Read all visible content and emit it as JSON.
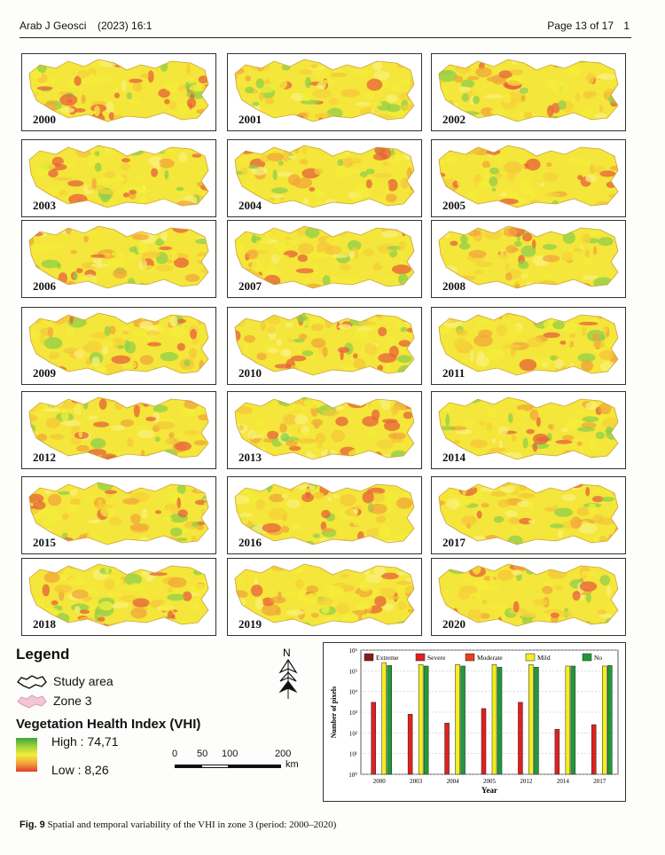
{
  "header": {
    "journal": "Arab J Geosci",
    "citation": "(2023) 16:1",
    "page_info": "Page 13 of 17",
    "page_number": "1"
  },
  "panels": [
    {
      "year": "2000"
    },
    {
      "year": "2001"
    },
    {
      "year": "2002"
    },
    {
      "year": "2003"
    },
    {
      "year": "2004"
    },
    {
      "year": "2005"
    },
    {
      "year": "2006"
    },
    {
      "year": "2007"
    },
    {
      "year": "2008"
    },
    {
      "year": "2009"
    },
    {
      "year": "2010"
    },
    {
      "year": "2011"
    },
    {
      "year": "2012"
    },
    {
      "year": "2013"
    },
    {
      "year": "2014"
    },
    {
      "year": "2015"
    },
    {
      "year": "2016"
    },
    {
      "year": "2017"
    },
    {
      "year": "2018"
    },
    {
      "year": "2019"
    },
    {
      "year": "2020"
    }
  ],
  "legend": {
    "title": "Legend",
    "study_area": "Study area",
    "zone": "Zone 3",
    "vhi_title": "Vegetation Health Index (VHI)",
    "high": "High : 74,71",
    "low": "Low : 8,26",
    "colors": {
      "high": "#3aa63a",
      "mid": "#f4ee3a",
      "low": "#e23a2a"
    }
  },
  "scale": {
    "ticks": [
      "0",
      "50",
      "100",
      "200"
    ],
    "unit": "km"
  },
  "north_label": "N",
  "chart_data": {
    "type": "bar",
    "categories": [
      "2000",
      "2003",
      "2004",
      "2005",
      "2012",
      "2014",
      "2017"
    ],
    "series": [
      {
        "name": "Extreme",
        "color": "#8b1a1a",
        "values": [
          0,
          0,
          0,
          0,
          0,
          0,
          0
        ]
      },
      {
        "name": "Severe",
        "color": "#e02020",
        "values": [
          3000,
          800,
          300,
          1500,
          3000,
          150,
          250
        ]
      },
      {
        "name": "Moderate",
        "color": "#e8401a",
        "values": [
          0,
          0,
          0,
          0,
          0,
          0,
          0
        ]
      },
      {
        "name": "Mild",
        "color": "#f5ee20",
        "values": [
          250000,
          200000,
          200000,
          200000,
          200000,
          170000,
          170000
        ]
      },
      {
        "name": "No",
        "color": "#1f9a3a",
        "values": [
          180000,
          170000,
          170000,
          150000,
          150000,
          170000,
          180000
        ]
      }
    ],
    "xlabel": "Year",
    "ylabel": "Number of pixels",
    "yscale": "log",
    "ylim": [
      1,
      1000000
    ],
    "ytick_labels": [
      "10⁰",
      "10¹",
      "10²",
      "10³",
      "10⁴",
      "10⁵",
      "10⁶"
    ]
  },
  "caption": {
    "label": "Fig. 9",
    "text": "Spatial and temporal variability of the VHI in zone 3 (period: 2000–2020)"
  }
}
